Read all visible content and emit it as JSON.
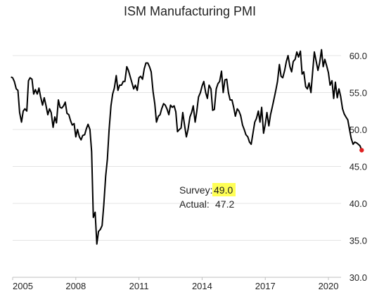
{
  "chart_data": {
    "type": "line",
    "title": "ISM Manufacturing PMI",
    "xlabel": "",
    "ylabel": "",
    "xlim": [
      2005.0,
      2020.6
    ],
    "ylim": [
      30.0,
      62.0
    ],
    "grid": true,
    "x_ticks": [
      {
        "value": 2005,
        "label": "2005"
      },
      {
        "value": 2008,
        "label": "2008"
      },
      {
        "value": 2011,
        "label": "2011"
      },
      {
        "value": 2014,
        "label": "2014"
      },
      {
        "value": 2017,
        "label": "2017"
      },
      {
        "value": 2020,
        "label": "2020"
      }
    ],
    "y_ticks": [
      {
        "value": 30,
        "label": "30.0"
      },
      {
        "value": 35,
        "label": "35.0"
      },
      {
        "value": 40,
        "label": "40.0"
      },
      {
        "value": 45,
        "label": "45.0"
      },
      {
        "value": 50,
        "label": "50.0"
      },
      {
        "value": 55,
        "label": "55.0"
      },
      {
        "value": 60,
        "label": "60.0"
      }
    ],
    "series": [
      {
        "color": "#000000",
        "points": [
          [
            2004.92,
            57.1
          ],
          [
            2005.0,
            57.0
          ],
          [
            2005.08,
            56.5
          ],
          [
            2005.17,
            55.5
          ],
          [
            2005.25,
            55.3
          ],
          [
            2005.33,
            52.3
          ],
          [
            2005.42,
            51.0
          ],
          [
            2005.5,
            52.5
          ],
          [
            2005.58,
            52.8
          ],
          [
            2005.67,
            52.5
          ],
          [
            2005.75,
            56.6
          ],
          [
            2005.83,
            57.0
          ],
          [
            2005.92,
            56.8
          ],
          [
            2006.0,
            54.8
          ],
          [
            2006.08,
            55.4
          ],
          [
            2006.17,
            54.8
          ],
          [
            2006.25,
            55.6
          ],
          [
            2006.33,
            54.4
          ],
          [
            2006.42,
            53.3
          ],
          [
            2006.5,
            54.3
          ],
          [
            2006.58,
            53.3
          ],
          [
            2006.67,
            52.0
          ],
          [
            2006.75,
            52.8
          ],
          [
            2006.83,
            52.3
          ],
          [
            2006.92,
            50.3
          ],
          [
            2007.0,
            51.7
          ],
          [
            2007.08,
            50.9
          ],
          [
            2007.17,
            54.0
          ],
          [
            2007.25,
            53.0
          ],
          [
            2007.33,
            52.9
          ],
          [
            2007.42,
            53.2
          ],
          [
            2007.5,
            53.7
          ],
          [
            2007.58,
            52.2
          ],
          [
            2007.67,
            52.0
          ],
          [
            2007.75,
            51.2
          ],
          [
            2007.83,
            50.6
          ],
          [
            2007.92,
            50.8
          ],
          [
            2008.0,
            49.0
          ],
          [
            2008.08,
            50.0
          ],
          [
            2008.17,
            49.0
          ],
          [
            2008.25,
            48.6
          ],
          [
            2008.33,
            49.2
          ],
          [
            2008.42,
            49.3
          ],
          [
            2008.5,
            50.1
          ],
          [
            2008.58,
            50.7
          ],
          [
            2008.67,
            50.0
          ],
          [
            2008.75,
            47.0
          ],
          [
            2008.83,
            38.1
          ],
          [
            2008.92,
            38.8
          ],
          [
            2009.0,
            34.5
          ],
          [
            2009.08,
            36.2
          ],
          [
            2009.17,
            36.5
          ],
          [
            2009.25,
            37.0
          ],
          [
            2009.33,
            39.8
          ],
          [
            2009.42,
            43.7
          ],
          [
            2009.5,
            46.0
          ],
          [
            2009.58,
            49.9
          ],
          [
            2009.67,
            53.2
          ],
          [
            2009.75,
            54.8
          ],
          [
            2009.83,
            55.6
          ],
          [
            2009.92,
            57.3
          ],
          [
            2010.0,
            55.3
          ],
          [
            2010.08,
            56.0
          ],
          [
            2010.17,
            56.0
          ],
          [
            2010.25,
            56.5
          ],
          [
            2010.33,
            56.5
          ],
          [
            2010.42,
            58.5
          ],
          [
            2010.5,
            58.0
          ],
          [
            2010.58,
            57.2
          ],
          [
            2010.67,
            56.3
          ],
          [
            2010.75,
            55.5
          ],
          [
            2010.83,
            56.0
          ],
          [
            2010.92,
            55.3
          ],
          [
            2011.0,
            57.0
          ],
          [
            2011.08,
            57.2
          ],
          [
            2011.17,
            56.8
          ],
          [
            2011.25,
            58.2
          ],
          [
            2011.33,
            59.0
          ],
          [
            2011.42,
            59.0
          ],
          [
            2011.5,
            58.5
          ],
          [
            2011.58,
            57.8
          ],
          [
            2011.67,
            55.1
          ],
          [
            2011.75,
            53.5
          ],
          [
            2011.83,
            51.0
          ],
          [
            2011.92,
            51.8
          ],
          [
            2012.0,
            52.0
          ],
          [
            2012.08,
            52.8
          ],
          [
            2012.17,
            53.5
          ],
          [
            2012.25,
            53.3
          ],
          [
            2012.33,
            52.8
          ],
          [
            2012.42,
            52.0
          ],
          [
            2012.5,
            53.3
          ],
          [
            2012.58,
            53.0
          ],
          [
            2012.67,
            53.2
          ],
          [
            2012.75,
            52.4
          ],
          [
            2012.83,
            49.7
          ],
          [
            2012.92,
            50.0
          ],
          [
            2013.0,
            50.2
          ],
          [
            2013.08,
            52.3
          ],
          [
            2013.17,
            50.5
          ],
          [
            2013.25,
            49.0
          ],
          [
            2013.33,
            50.0
          ],
          [
            2013.42,
            51.7
          ],
          [
            2013.5,
            52.3
          ],
          [
            2013.58,
            53.2
          ],
          [
            2013.67,
            51.0
          ],
          [
            2013.75,
            52.5
          ],
          [
            2013.83,
            54.4
          ],
          [
            2013.92,
            55.0
          ],
          [
            2014.0,
            55.9
          ],
          [
            2014.08,
            56.5
          ],
          [
            2014.17,
            55.0
          ],
          [
            2014.25,
            54.2
          ],
          [
            2014.33,
            56.0
          ],
          [
            2014.42,
            55.5
          ],
          [
            2014.5,
            52.6
          ],
          [
            2014.58,
            52.7
          ],
          [
            2014.67,
            55.5
          ],
          [
            2014.75,
            56.2
          ],
          [
            2014.83,
            56.5
          ],
          [
            2014.92,
            57.9
          ],
          [
            2015.0,
            55.0
          ],
          [
            2015.08,
            56.7
          ],
          [
            2015.17,
            56.8
          ],
          [
            2015.25,
            55.0
          ],
          [
            2015.33,
            54.0
          ],
          [
            2015.42,
            54.0
          ],
          [
            2015.5,
            53.0
          ],
          [
            2015.58,
            51.8
          ],
          [
            2015.67,
            52.8
          ],
          [
            2015.75,
            52.5
          ],
          [
            2015.83,
            51.9
          ],
          [
            2015.92,
            50.6
          ],
          [
            2016.0,
            50.0
          ],
          [
            2016.08,
            49.3
          ],
          [
            2016.17,
            49.0
          ],
          [
            2016.25,
            48.3
          ],
          [
            2016.33,
            48.0
          ],
          [
            2016.42,
            49.6
          ],
          [
            2016.5,
            51.0
          ],
          [
            2016.58,
            51.5
          ],
          [
            2016.67,
            52.5
          ],
          [
            2016.75,
            51.0
          ],
          [
            2016.83,
            53.0
          ],
          [
            2016.92,
            49.5
          ],
          [
            2017.0,
            50.7
          ],
          [
            2017.08,
            52.3
          ],
          [
            2017.17,
            50.5
          ],
          [
            2017.25,
            52.0
          ],
          [
            2017.33,
            53.0
          ],
          [
            2017.42,
            54.2
          ],
          [
            2017.5,
            55.3
          ],
          [
            2017.58,
            56.5
          ],
          [
            2017.67,
            58.8
          ],
          [
            2017.75,
            57.2
          ],
          [
            2017.83,
            57.0
          ],
          [
            2017.92,
            58.0
          ],
          [
            2018.0,
            59.2
          ],
          [
            2018.08,
            60.0
          ],
          [
            2018.17,
            58.5
          ],
          [
            2018.25,
            57.8
          ],
          [
            2018.33,
            59.2
          ],
          [
            2018.42,
            59.5
          ],
          [
            2018.5,
            60.5
          ],
          [
            2018.58,
            59.8
          ],
          [
            2018.67,
            60.6
          ],
          [
            2018.75,
            57.5
          ],
          [
            2018.83,
            57.8
          ],
          [
            2018.92,
            55.8
          ],
          [
            2019.0,
            55.5
          ],
          [
            2019.08,
            56.3
          ],
          [
            2019.17,
            55.0
          ],
          [
            2019.25,
            57.8
          ],
          [
            2019.33,
            60.5
          ],
          [
            2019.42,
            59.2
          ],
          [
            2019.5,
            58.0
          ],
          [
            2019.58,
            59.0
          ],
          [
            2019.67,
            60.8
          ],
          [
            2019.75,
            58.5
          ],
          [
            2019.83,
            59.5
          ],
          [
            2019.92,
            58.6
          ],
          [
            2020.0,
            57.7
          ],
          [
            2020.08,
            56.0
          ],
          [
            2020.17,
            56.6
          ],
          [
            2020.25,
            54.2
          ],
          [
            2020.33,
            56.4
          ],
          [
            2020.42,
            54.3
          ],
          [
            2020.5,
            55.5
          ],
          [
            2020.58,
            54.5
          ],
          [
            2020.67,
            52.8
          ],
          [
            2020.75,
            52.1
          ],
          [
            2020.83,
            51.7
          ],
          [
            2020.92,
            51.3
          ],
          [
            2021.0,
            50.0
          ],
          [
            2021.08,
            48.8
          ],
          [
            2021.17,
            48.0
          ],
          [
            2021.25,
            48.3
          ],
          [
            2021.33,
            48.2
          ],
          [
            2021.42,
            48.0
          ],
          [
            2021.5,
            47.8
          ],
          [
            2021.58,
            47.2
          ]
        ]
      }
    ],
    "highlight_point": {
      "x": 2021.58,
      "y": 47.2,
      "color": "#e02020"
    },
    "annotation": {
      "survey_label": "Survey:",
      "survey_value": "49.0",
      "survey_highlight_color": "#ffff55",
      "actual_label": "Actual:",
      "actual_value": "47.2"
    }
  }
}
